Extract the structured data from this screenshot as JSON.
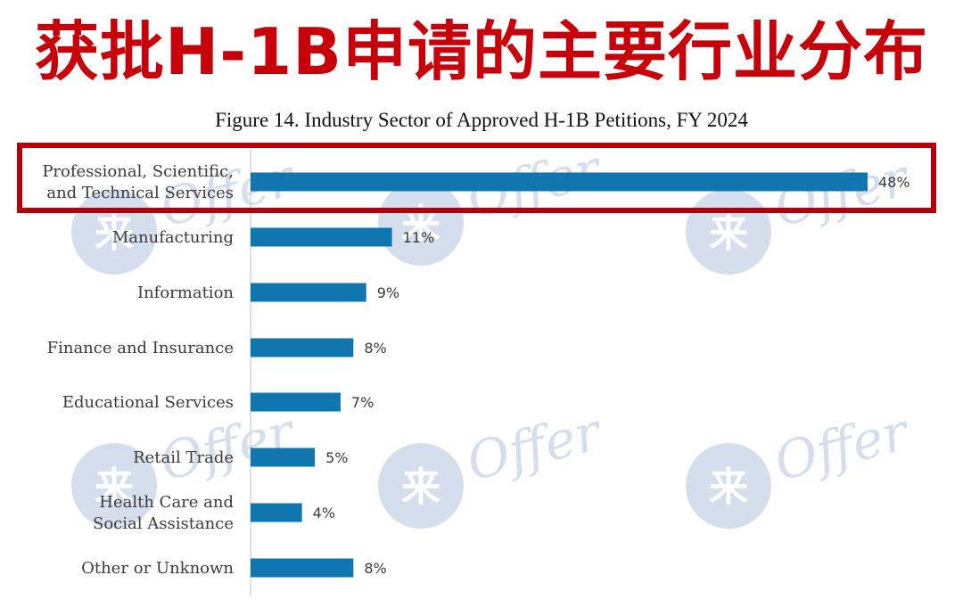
{
  "headline": "获批H-1B申请的主要行业分布",
  "watermark": {
    "mark": "来",
    "word": "Offer"
  },
  "colors": {
    "bar": "#0f76b0",
    "headline": "#c8000a",
    "highlight_box": "#b3000a"
  },
  "highlighted_category": "Professional, Scientific, and Technical Services",
  "chart_data": {
    "type": "bar",
    "orientation": "horizontal",
    "title": "Figure 14. Industry Sector of Approved H-1B Petitions, FY 2024",
    "categories": [
      [
        "Professional, Scientific,",
        "and Technical Services"
      ],
      [
        "Manufacturing"
      ],
      [
        "Information"
      ],
      [
        "Finance and Insurance"
      ],
      [
        "Educational Services"
      ],
      [
        "Retail Trade"
      ],
      [
        "Health Care and",
        "Social Assistance"
      ],
      [
        "Other or Unknown"
      ]
    ],
    "values": [
      48,
      11,
      9,
      8,
      7,
      5,
      4,
      8
    ],
    "value_labels": [
      "48%",
      "11%",
      "9%",
      "8%",
      "7%",
      "5%",
      "4%",
      "8%"
    ],
    "unit": "%",
    "xlim": [
      0,
      48
    ],
    "grid": false,
    "legend": "none"
  }
}
